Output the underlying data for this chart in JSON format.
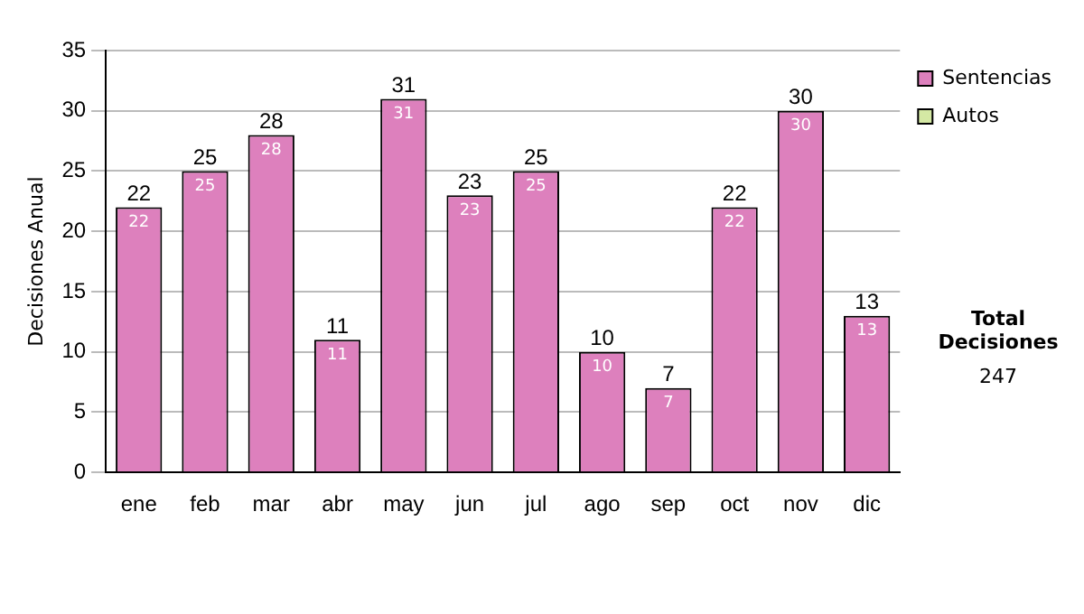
{
  "chart_data": {
    "type": "bar",
    "ylabel": "Decisiones Anual",
    "categories": [
      "ene",
      "feb",
      "mar",
      "abr",
      "may",
      "jun",
      "jul",
      "ago",
      "sep",
      "oct",
      "nov",
      "dic"
    ],
    "series": [
      {
        "name": "Sentencias",
        "color": "#dd80bd",
        "values": [
          22,
          25,
          28,
          11,
          31,
          23,
          25,
          10,
          7,
          22,
          30,
          13
        ],
        "value_labels": [
          "22",
          "25",
          "28",
          "11",
          "31",
          "23",
          "25",
          "10",
          "7",
          "22",
          "30",
          "13"
        ]
      },
      {
        "name": "Autos",
        "color": "#d4e8a4",
        "values": [
          null,
          null,
          null,
          null,
          null,
          null,
          null,
          null,
          null,
          null,
          null,
          null
        ]
      }
    ],
    "stacked": true,
    "totals": [
      "22",
      "25",
      "28",
      "11",
      "31",
      "23",
      "25",
      "10",
      "7",
      "22",
      "30",
      "13"
    ],
    "ylim": [
      0,
      35
    ],
    "yticks": [
      0,
      5,
      10,
      15,
      20,
      25,
      30,
      35
    ],
    "grid": "y",
    "legend": "right",
    "annotations": [
      "Total Decisiones",
      "247"
    ]
  }
}
